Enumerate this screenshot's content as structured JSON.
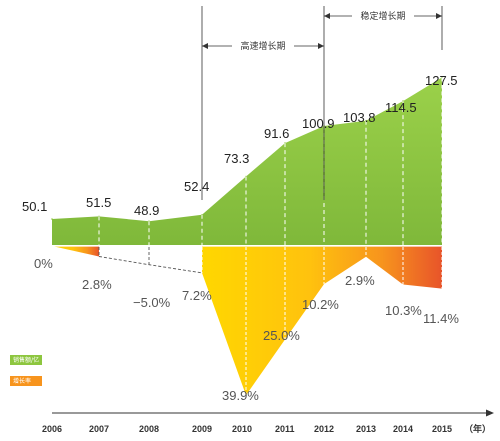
{
  "chart_data": {
    "type": "area",
    "categories": [
      "2006",
      "2007",
      "2008",
      "2009",
      "2010",
      "2011",
      "2012",
      "2013",
      "2014",
      "2015"
    ],
    "year_unit": "（年）",
    "series": [
      {
        "name": "销售额/亿",
        "values": [
          50.1,
          51.5,
          48.9,
          52.4,
          73.3,
          91.6,
          100.9,
          103.8,
          114.5,
          127.5
        ],
        "labels": [
          "50.1",
          "51.5",
          "48.9",
          "52.4",
          "73.3",
          "91.6",
          "100.9",
          "103.8",
          "114.5",
          "127.5"
        ],
        "color": "#8dc63f"
      },
      {
        "name": "增长率",
        "values": [
          0,
          2.8,
          -5.0,
          7.2,
          39.9,
          25.0,
          10.2,
          2.9,
          10.3,
          11.4
        ],
        "labels": [
          "0%",
          "2.8%",
          "−5.0%",
          "7.2%",
          "39.9%",
          "25.0%",
          "10.2%",
          "2.9%",
          "10.3%",
          "11.4%"
        ],
        "colors": [
          "#ffd200",
          "#e8542a"
        ]
      }
    ],
    "periods": [
      {
        "label": "高速增长期",
        "from": "2009",
        "to": "2012"
      },
      {
        "label": "稳定增长期",
        "from": "2012",
        "to": "2015"
      }
    ]
  }
}
